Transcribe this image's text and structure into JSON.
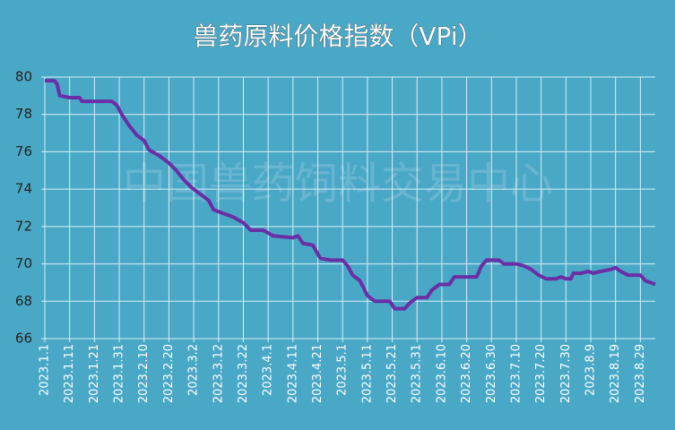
{
  "chart_data": {
    "type": "line",
    "title": "兽药原料价格指数（VPi）",
    "watermark": "中国兽药饲料交易中心",
    "x": [
      "2023.1.1",
      "2023.1.5",
      "2023.1.6",
      "2023.1.7",
      "2023.1.11",
      "2023.1.15",
      "2023.1.16",
      "2023.1.21",
      "2023.1.28",
      "2023.1.30",
      "2023.2.1",
      "2023.2.4",
      "2023.2.7",
      "2023.2.10",
      "2023.2.12",
      "2023.2.16",
      "2023.2.20",
      "2023.2.23",
      "2023.2.26",
      "2023.3.1",
      "2023.3.4",
      "2023.3.8",
      "2023.3.10",
      "2023.3.14",
      "2023.3.18",
      "2023.3.22",
      "2023.3.25",
      "2023.3.30",
      "2023.4.3",
      "2023.4.11",
      "2023.4.13",
      "2023.4.15",
      "2023.4.19",
      "2023.4.22",
      "2023.4.26",
      "2023.5.1",
      "2023.5.3",
      "2023.5.5",
      "2023.5.8",
      "2023.5.11",
      "2023.5.14",
      "2023.5.20",
      "2023.5.22",
      "2023.5.26",
      "2023.5.28",
      "2023.5.31",
      "2023.6.4",
      "2023.6.6",
      "2023.6.9",
      "2023.6.13",
      "2023.6.15",
      "2023.6.20",
      "2023.6.24",
      "2023.6.26",
      "2023.6.28",
      "2023.7.3",
      "2023.7.5",
      "2023.7.10",
      "2023.7.13",
      "2023.7.16",
      "2023.7.19",
      "2023.7.22",
      "2023.7.26",
      "2023.7.28",
      "2023.7.30",
      "2023.8.1",
      "2023.8.2",
      "2023.8.5",
      "2023.8.8",
      "2023.8.10",
      "2023.8.13",
      "2023.8.17",
      "2023.8.19",
      "2023.8.21",
      "2023.8.24",
      "2023.8.29",
      "2023.8.31",
      "2023.9.2",
      "2023.9.4"
    ],
    "series": [
      {
        "color": "#6a2fa6",
        "values": [
          79.8,
          79.8,
          79.6,
          79.0,
          78.9,
          78.9,
          78.7,
          78.7,
          78.7,
          78.5,
          78.0,
          77.4,
          76.9,
          76.6,
          76.1,
          75.8,
          75.4,
          75.0,
          74.5,
          74.1,
          73.8,
          73.4,
          72.9,
          72.7,
          72.5,
          72.2,
          71.8,
          71.8,
          71.5,
          71.4,
          71.5,
          71.1,
          71.0,
          70.3,
          70.2,
          70.2,
          69.9,
          69.4,
          69.1,
          68.3,
          68.0,
          68.0,
          67.6,
          67.6,
          67.9,
          68.2,
          68.2,
          68.6,
          68.9,
          68.9,
          69.3,
          69.3,
          69.3,
          69.9,
          70.2,
          70.2,
          70.0,
          70.0,
          69.9,
          69.7,
          69.4,
          69.2,
          69.2,
          69.3,
          69.2,
          69.2,
          69.5,
          69.5,
          69.6,
          69.5,
          69.6,
          69.7,
          69.8,
          69.6,
          69.4,
          69.4,
          69.1,
          69.0,
          68.9
        ]
      }
    ],
    "xlim": [
      "2023.1.1",
      "2023.9.4"
    ],
    "xticks": [
      "2023.1.1",
      "2023.1.11",
      "2023.1.21",
      "2023.1.31",
      "2023.2.10",
      "2023.2.20",
      "2023.3.2",
      "2023.3.12",
      "2023.3.22",
      "2023.4.1",
      "2023.4.11",
      "2023.4.21",
      "2023.5.1",
      "2023.5.11",
      "2023.5.21",
      "2023.5.31",
      "2023.6.10",
      "2023.6.20",
      "2023.6.30",
      "2023.7.10",
      "2023.7.20",
      "2023.7.30",
      "2023.8.9",
      "2023.8.19",
      "2023.8.29"
    ],
    "ylim": [
      66,
      80
    ],
    "yticks": [
      66,
      68,
      70,
      72,
      74,
      76,
      78,
      80
    ],
    "grid": true
  }
}
